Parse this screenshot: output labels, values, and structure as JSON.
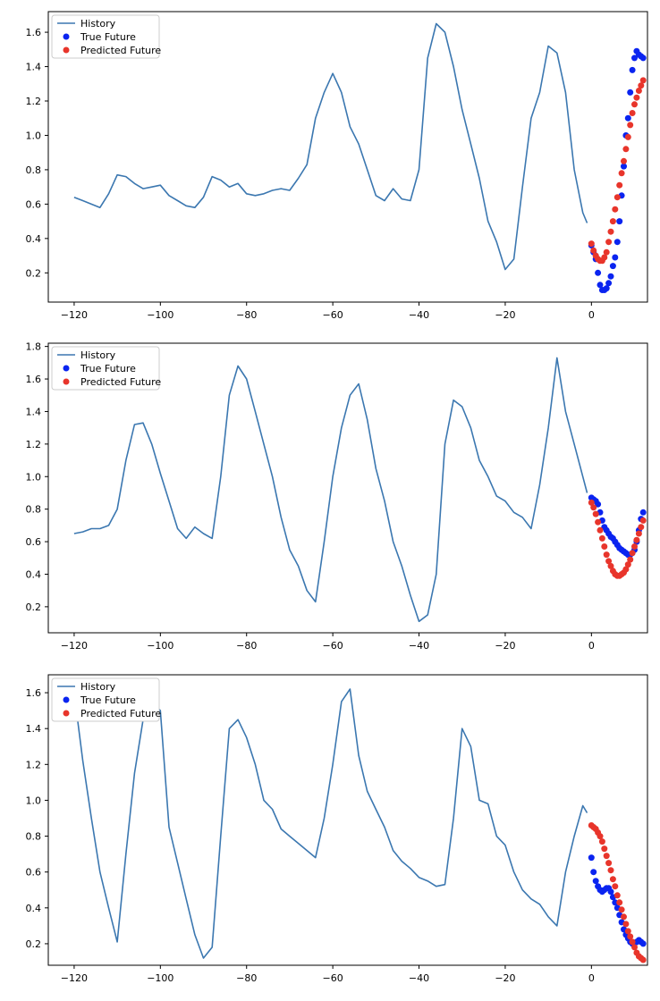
{
  "colors": {
    "history": "#3b77b0",
    "true_future": "#0a24f0",
    "predicted_future": "#e8352b"
  },
  "legend": {
    "history": "History",
    "true_future": "True Future",
    "predicted_future": "Predicted Future"
  },
  "chart_data": [
    {
      "type": "line",
      "title": "",
      "xlabel": "",
      "ylabel": "",
      "xlim": [
        -126,
        13
      ],
      "ylim": [
        0.03,
        1.72
      ],
      "xticks": [
        -120,
        -100,
        -80,
        -60,
        -40,
        -20,
        0
      ],
      "yticks": [
        0.2,
        0.4,
        0.6,
        0.8,
        1.0,
        1.2,
        1.4,
        1.6
      ],
      "legend_position": "top-left",
      "series": [
        {
          "name": "History",
          "kind": "line",
          "x": [
            -120,
            -118,
            -116,
            -114,
            -112,
            -110,
            -108,
            -106,
            -104,
            -102,
            -100,
            -98,
            -96,
            -94,
            -92,
            -90,
            -88,
            -86,
            -84,
            -82,
            -80,
            -78,
            -76,
            -74,
            -72,
            -70,
            -68,
            -66,
            -64,
            -62,
            -60,
            -58,
            -56,
            -54,
            -52,
            -50,
            -48,
            -46,
            -44,
            -42,
            -40,
            -38,
            -36,
            -34,
            -32,
            -30,
            -28,
            -26,
            -24,
            -22,
            -20,
            -18,
            -16,
            -14,
            -12,
            -10,
            -8,
            -6,
            -4,
            -2,
            -1
          ],
          "y": [
            0.64,
            0.62,
            0.6,
            0.58,
            0.66,
            0.77,
            0.76,
            0.72,
            0.69,
            0.7,
            0.71,
            0.65,
            0.62,
            0.59,
            0.58,
            0.64,
            0.76,
            0.74,
            0.7,
            0.72,
            0.66,
            0.65,
            0.66,
            0.68,
            0.69,
            0.68,
            0.75,
            0.83,
            1.1,
            1.25,
            1.36,
            1.25,
            1.05,
            0.95,
            0.8,
            0.65,
            0.62,
            0.69,
            0.63,
            0.62,
            0.8,
            1.45,
            1.65,
            1.6,
            1.4,
            1.15,
            0.95,
            0.75,
            0.5,
            0.38,
            0.22,
            0.28,
            0.7,
            1.1,
            1.25,
            1.52,
            1.48,
            1.25,
            0.8,
            0.55,
            0.49
          ]
        },
        {
          "name": "True Future",
          "kind": "scatter",
          "x": [
            0,
            0.5,
            1,
            1.5,
            2,
            2.5,
            3,
            3.5,
            4,
            4.5,
            5,
            5.5,
            6,
            6.5,
            7,
            7.5,
            8,
            8.5,
            9,
            9.5,
            10,
            10.5,
            11,
            11.5,
            12
          ],
          "y": [
            0.36,
            0.32,
            0.28,
            0.2,
            0.13,
            0.1,
            0.1,
            0.11,
            0.14,
            0.18,
            0.24,
            0.29,
            0.38,
            0.5,
            0.65,
            0.82,
            1.0,
            1.1,
            1.25,
            1.38,
            1.45,
            1.49,
            1.47,
            1.46,
            1.45
          ]
        },
        {
          "name": "Predicted Future",
          "kind": "scatter",
          "x": [
            0,
            0.5,
            1,
            1.5,
            2,
            2.5,
            3,
            3.5,
            4,
            4.5,
            5,
            5.5,
            6,
            6.5,
            7,
            7.5,
            8,
            8.5,
            9,
            9.5,
            10,
            10.5,
            11,
            11.5,
            12
          ],
          "y": [
            0.37,
            0.33,
            0.3,
            0.28,
            0.27,
            0.27,
            0.29,
            0.32,
            0.38,
            0.44,
            0.5,
            0.57,
            0.64,
            0.71,
            0.78,
            0.85,
            0.92,
            0.99,
            1.06,
            1.13,
            1.18,
            1.22,
            1.26,
            1.29,
            1.32
          ]
        }
      ]
    },
    {
      "type": "line",
      "title": "",
      "xlabel": "",
      "ylabel": "",
      "xlim": [
        -126,
        13
      ],
      "ylim": [
        0.04,
        1.82
      ],
      "xticks": [
        -120,
        -100,
        -80,
        -60,
        -40,
        -20,
        0
      ],
      "yticks": [
        0.2,
        0.4,
        0.6,
        0.8,
        1.0,
        1.2,
        1.4,
        1.6,
        1.8
      ],
      "legend_position": "top-left",
      "series": [
        {
          "name": "History",
          "kind": "line",
          "x": [
            -120,
            -118,
            -116,
            -114,
            -112,
            -110,
            -108,
            -106,
            -104,
            -102,
            -100,
            -98,
            -96,
            -94,
            -92,
            -90,
            -88,
            -86,
            -84,
            -82,
            -80,
            -78,
            -76,
            -74,
            -72,
            -70,
            -68,
            -66,
            -64,
            -62,
            -60,
            -58,
            -56,
            -54,
            -52,
            -50,
            -48,
            -46,
            -44,
            -42,
            -40,
            -38,
            -36,
            -34,
            -32,
            -30,
            -28,
            -26,
            -24,
            -22,
            -20,
            -18,
            -16,
            -14,
            -12,
            -10,
            -8,
            -6,
            -4,
            -2,
            -1
          ],
          "y": [
            0.65,
            0.66,
            0.68,
            0.68,
            0.7,
            0.8,
            1.1,
            1.32,
            1.33,
            1.2,
            1.02,
            0.85,
            0.68,
            0.62,
            0.69,
            0.65,
            0.62,
            1.0,
            1.5,
            1.68,
            1.6,
            1.4,
            1.2,
            1.0,
            0.75,
            0.55,
            0.45,
            0.3,
            0.23,
            0.6,
            1.0,
            1.3,
            1.5,
            1.57,
            1.35,
            1.05,
            0.85,
            0.6,
            0.45,
            0.27,
            0.11,
            0.15,
            0.4,
            1.2,
            1.47,
            1.43,
            1.3,
            1.1,
            1.0,
            0.88,
            0.85,
            0.78,
            0.75,
            0.68,
            0.95,
            1.3,
            1.73,
            1.4,
            1.2,
            1.0,
            0.9
          ]
        },
        {
          "name": "True Future",
          "kind": "scatter",
          "x": [
            0,
            0.5,
            1,
            1.5,
            2,
            2.5,
            3,
            3.5,
            4,
            4.5,
            5,
            5.5,
            6,
            6.5,
            7,
            7.5,
            8,
            8.5,
            9,
            9.5,
            10,
            10.5,
            11,
            11.5,
            12
          ],
          "y": [
            0.87,
            0.86,
            0.85,
            0.83,
            0.78,
            0.73,
            0.69,
            0.67,
            0.65,
            0.63,
            0.62,
            0.6,
            0.58,
            0.56,
            0.55,
            0.54,
            0.53,
            0.52,
            0.52,
            0.53,
            0.55,
            0.6,
            0.67,
            0.74,
            0.78
          ]
        },
        {
          "name": "Predicted Future",
          "kind": "scatter",
          "x": [
            0,
            0.5,
            1,
            1.5,
            2,
            2.5,
            3,
            3.5,
            4,
            4.5,
            5,
            5.5,
            6,
            6.5,
            7,
            7.5,
            8,
            8.5,
            9,
            9.5,
            10,
            10.5,
            11,
            11.5,
            12
          ],
          "y": [
            0.84,
            0.81,
            0.77,
            0.72,
            0.67,
            0.62,
            0.57,
            0.52,
            0.48,
            0.45,
            0.42,
            0.4,
            0.39,
            0.39,
            0.4,
            0.41,
            0.43,
            0.46,
            0.49,
            0.53,
            0.57,
            0.61,
            0.65,
            0.69,
            0.73
          ]
        }
      ]
    },
    {
      "type": "line",
      "title": "",
      "xlabel": "",
      "ylabel": "",
      "xlim": [
        -126,
        13
      ],
      "ylim": [
        0.08,
        1.7
      ],
      "xticks": [
        -120,
        -100,
        -80,
        -60,
        -40,
        -20,
        0
      ],
      "yticks": [
        0.2,
        0.4,
        0.6,
        0.8,
        1.0,
        1.2,
        1.4,
        1.6
      ],
      "legend_position": "top-left",
      "series": [
        {
          "name": "History",
          "kind": "line",
          "x": [
            -120,
            -118,
            -116,
            -114,
            -112,
            -110,
            -108,
            -106,
            -104,
            -102,
            -100,
            -98,
            -96,
            -94,
            -92,
            -90,
            -88,
            -86,
            -84,
            -82,
            -80,
            -78,
            -76,
            -74,
            -72,
            -70,
            -68,
            -66,
            -64,
            -62,
            -60,
            -58,
            -56,
            -54,
            -52,
            -50,
            -48,
            -46,
            -44,
            -42,
            -40,
            -38,
            -36,
            -34,
            -32,
            -30,
            -28,
            -26,
            -24,
            -22,
            -20,
            -18,
            -16,
            -14,
            -12,
            -10,
            -8,
            -6,
            -4,
            -2,
            -1
          ],
          "y": [
            1.6,
            1.22,
            0.9,
            0.6,
            0.4,
            0.21,
            0.7,
            1.15,
            1.45,
            1.55,
            1.5,
            0.85,
            0.65,
            0.45,
            0.25,
            0.12,
            0.18,
            0.8,
            1.4,
            1.45,
            1.35,
            1.2,
            1.0,
            0.95,
            0.84,
            0.8,
            0.76,
            0.72,
            0.68,
            0.9,
            1.2,
            1.55,
            1.62,
            1.25,
            1.05,
            0.95,
            0.85,
            0.72,
            0.66,
            0.62,
            0.57,
            0.55,
            0.52,
            0.53,
            0.9,
            1.4,
            1.3,
            1.0,
            0.98,
            0.8,
            0.75,
            0.6,
            0.5,
            0.45,
            0.42,
            0.35,
            0.3,
            0.6,
            0.8,
            0.97,
            0.93
          ]
        },
        {
          "name": "True Future",
          "kind": "scatter",
          "x": [
            0,
            0.5,
            1,
            1.5,
            2,
            2.5,
            3,
            3.5,
            4,
            4.5,
            5,
            5.5,
            6,
            6.5,
            7,
            7.5,
            8,
            8.5,
            9,
            9.5,
            10,
            10.5,
            11,
            11.5,
            12
          ],
          "y": [
            0.68,
            0.6,
            0.55,
            0.52,
            0.5,
            0.49,
            0.5,
            0.51,
            0.51,
            0.49,
            0.46,
            0.43,
            0.4,
            0.36,
            0.32,
            0.28,
            0.25,
            0.23,
            0.21,
            0.2,
            0.2,
            0.21,
            0.22,
            0.21,
            0.2
          ]
        },
        {
          "name": "Predicted Future",
          "kind": "scatter",
          "x": [
            0,
            0.5,
            1,
            1.5,
            2,
            2.5,
            3,
            3.5,
            4,
            4.5,
            5,
            5.5,
            6,
            6.5,
            7,
            7.5,
            8,
            8.5,
            9,
            9.5,
            10,
            10.5,
            11,
            11.5,
            12
          ],
          "y": [
            0.86,
            0.85,
            0.84,
            0.82,
            0.8,
            0.77,
            0.73,
            0.69,
            0.65,
            0.61,
            0.56,
            0.52,
            0.47,
            0.43,
            0.39,
            0.35,
            0.31,
            0.27,
            0.24,
            0.21,
            0.18,
            0.15,
            0.13,
            0.12,
            0.11
          ]
        }
      ]
    }
  ]
}
